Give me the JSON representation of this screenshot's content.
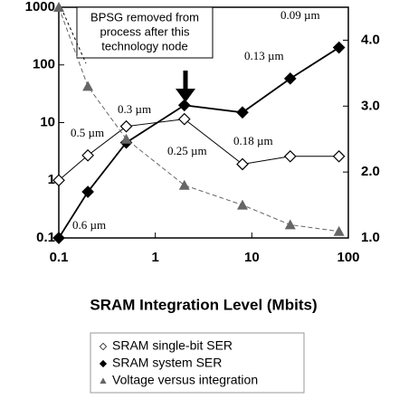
{
  "chart_data": {
    "type": "line",
    "x_label": "SRAM Integration Level (Mbits)",
    "x_scale": "log",
    "y_scale": "log",
    "xlim": [
      0.1,
      100
    ],
    "xticks": [
      0.1,
      1,
      10,
      100
    ],
    "ylim": [
      0.1,
      1000
    ],
    "yticks": [
      0.1,
      1,
      10,
      100,
      1000
    ],
    "y2lim": [
      1,
      4.5
    ],
    "y2ticks": [
      {
        "value": 1,
        "label": "1.0"
      },
      {
        "value": 2,
        "label": "2.0"
      },
      {
        "value": 3,
        "label": "3.0"
      },
      {
        "value": 4,
        "label": "4.0"
      }
    ],
    "x": [
      0.1,
      0.2,
      0.5,
      2,
      8,
      25,
      80
    ],
    "series": [
      {
        "name": "SRAM single-bit SER",
        "color": "#000000",
        "marker": "open-diamond",
        "values": [
          1,
          2.7,
          8.6,
          11.5,
          1.9,
          2.6,
          2.6
        ]
      },
      {
        "name": "SRAM system SER",
        "color": "#000000",
        "marker": "diamond",
        "values": [
          0.1,
          0.63,
          4.5,
          20,
          15,
          58,
          200
        ]
      },
      {
        "name": "Voltage versus integration",
        "color": "#666666",
        "marker": "triangle",
        "axis": "y2",
        "values": [
          4.5,
          3.3,
          2.5,
          1.8,
          1.5,
          1.2,
          1.1
        ]
      }
    ],
    "annotations": [
      "BPSG removed from",
      "process after this",
      "technology node",
      "0.09 µm",
      "0.13 µm",
      "0.3 µm",
      "0.5 µm",
      "0.25 µm",
      "0.18 µm",
      "0.6 µm"
    ]
  }
}
